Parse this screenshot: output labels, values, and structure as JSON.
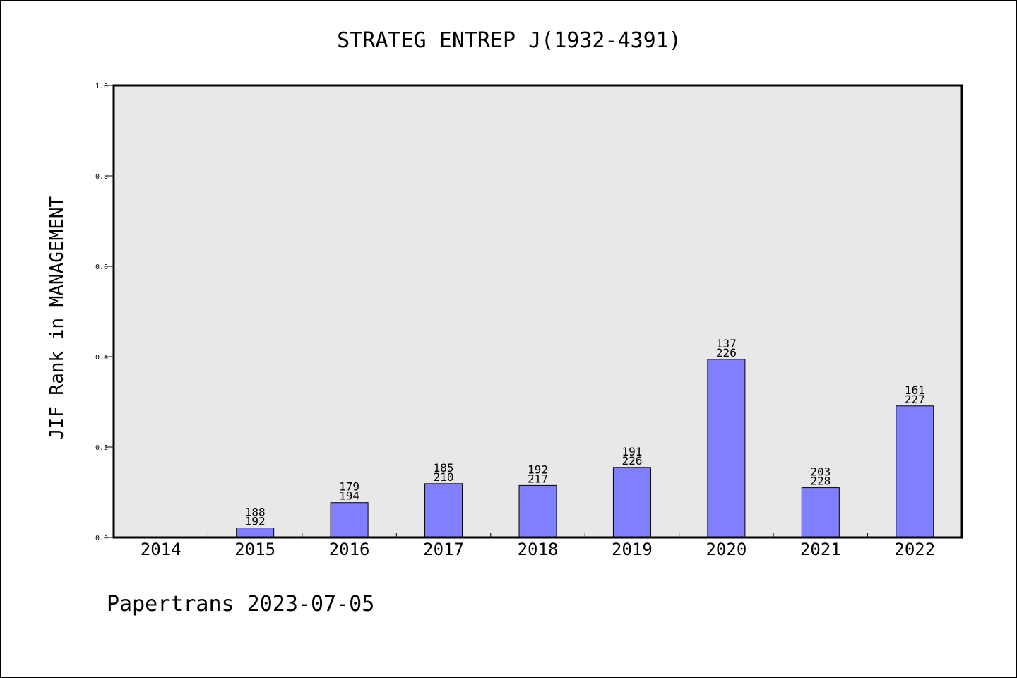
{
  "chart_data": {
    "type": "bar",
    "title": "STRATEG ENTREP J(1932-4391)",
    "xlabel": "",
    "ylabel": "JIF Rank in MANAGEMENT",
    "ylim": [
      0,
      1.0
    ],
    "yticks": [
      "0.0",
      "0.2",
      "0.4",
      "0.6",
      "0.8",
      "1.0"
    ],
    "grid": false,
    "categories": [
      "2014",
      "2015",
      "2016",
      "2017",
      "2018",
      "2019",
      "2020",
      "2021",
      "2022"
    ],
    "values": [
      0,
      0.021,
      0.077,
      0.119,
      0.115,
      0.155,
      0.394,
      0.11,
      0.291
    ],
    "rank": [
      null,
      188,
      179,
      185,
      192,
      191,
      137,
      203,
      161
    ],
    "total": [
      null,
      192,
      194,
      210,
      217,
      226,
      226,
      228,
      227
    ],
    "bar_color": "#8080ff",
    "plot_bg": "#e8e8e8"
  },
  "footer": "Papertrans 2023-07-05"
}
